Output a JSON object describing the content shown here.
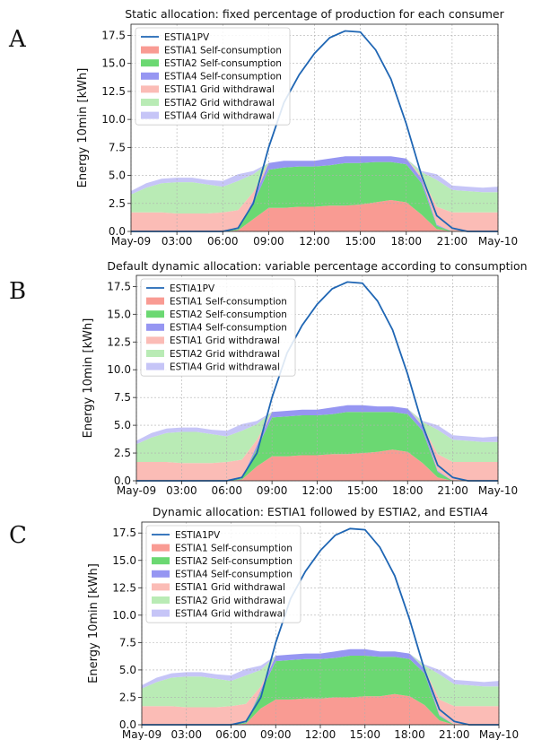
{
  "figure": {
    "panels": [
      {
        "letter": "A",
        "title": "Static allocation: fixed percentage of production for each consumer"
      },
      {
        "letter": "B",
        "title": "Default dynamic allocation: variable percentage according to consumption"
      },
      {
        "letter": "C",
        "title": "Dynamic allocation: ESTIA1 followed by ESTIA2, and ESTIA4"
      }
    ]
  },
  "colors": {
    "pv": "#1f66b4",
    "ESTIA1_self": "#f99b93",
    "ESTIA2_self": "#6bd872",
    "ESTIA4_self": "#9696f2",
    "ESTIA1_grid": "#fbbcb6",
    "ESTIA2_grid": "#b9ebb5",
    "ESTIA4_grid": "#c6c5f7"
  },
  "chart_data": [
    {
      "type": "area",
      "title": "Static allocation: fixed percentage of production for each consumer",
      "ylabel": "Energy 10min [kWh]",
      "xlabel": "",
      "x_ticks": [
        "May-09",
        "03:00",
        "06:00",
        "09:00",
        "12:00",
        "15:00",
        "18:00",
        "21:00",
        "May-10"
      ],
      "y_ticks": [
        "0.0",
        "2.5",
        "5.0",
        "7.5",
        "10.0",
        "12.5",
        "15.0",
        "17.5"
      ],
      "ylim": [
        0,
        18.5
      ],
      "x_hours": [
        0,
        1,
        2,
        3,
        4,
        5,
        6,
        7,
        8,
        9,
        10,
        11,
        12,
        13,
        14,
        15,
        16,
        17,
        18,
        19,
        20,
        21,
        22,
        23,
        24
      ],
      "legend": {
        "placement": "upper-left",
        "entries": [
          "ESTIA1PV",
          "ESTIA1 Self-consumption",
          "ESTIA2 Self-consumption",
          "ESTIA4 Self-consumption",
          "ESTIA1 Grid withdrawal",
          "ESTIA2 Grid withdrawal",
          "ESTIA4 Grid withdrawal"
        ]
      },
      "grid": true,
      "series": [
        {
          "name": "ESTIA1PV",
          "kind": "line",
          "values": [
            0,
            0,
            0,
            0,
            0,
            0,
            0,
            0.3,
            2.5,
            7.5,
            11.5,
            14.0,
            15.9,
            17.3,
            17.9,
            17.8,
            16.2,
            13.6,
            9.6,
            5.0,
            1.4,
            0.3,
            0,
            0,
            0
          ]
        },
        {
          "name": "ESTIA1 Self-consumption",
          "kind": "area",
          "values": [
            0,
            0,
            0,
            0,
            0,
            0,
            0,
            0.1,
            1.1,
            2.1,
            2.1,
            2.2,
            2.2,
            2.3,
            2.3,
            2.4,
            2.6,
            2.8,
            2.6,
            1.5,
            0.2,
            0,
            0,
            0,
            0
          ]
        },
        {
          "name": "ESTIA2 Self-consumption",
          "kind": "area",
          "values": [
            0,
            0,
            0,
            0,
            0,
            0,
            0,
            0.1,
            1.4,
            3.4,
            3.6,
            3.6,
            3.6,
            3.6,
            3.8,
            3.7,
            3.6,
            3.4,
            3.4,
            2.8,
            0.3,
            0,
            0,
            0,
            0
          ]
        },
        {
          "name": "ESTIA4 Self-consumption",
          "kind": "area",
          "values": [
            0,
            0,
            0,
            0,
            0,
            0,
            0,
            0,
            0.3,
            0.6,
            0.6,
            0.5,
            0.5,
            0.6,
            0.6,
            0.6,
            0.5,
            0.5,
            0.5,
            0.4,
            0.1,
            0,
            0,
            0,
            0
          ]
        },
        {
          "name": "ESTIA1 Grid withdrawal",
          "kind": "area",
          "values": [
            1.7,
            1.7,
            1.7,
            1.6,
            1.6,
            1.6,
            1.7,
            1.7,
            0.7,
            0,
            0,
            0,
            0,
            0,
            0,
            0,
            0,
            0,
            0,
            0.2,
            1.6,
            1.7,
            1.7,
            1.7,
            1.7
          ]
        },
        {
          "name": "ESTIA2 Grid withdrawal",
          "kind": "area",
          "values": [
            1.6,
            2.2,
            2.6,
            2.8,
            2.8,
            2.6,
            2.3,
            2.6,
            1.6,
            0,
            0,
            0,
            0,
            0,
            0,
            0,
            0,
            0,
            0,
            0.4,
            2.4,
            2.0,
            1.9,
            1.8,
            1.8
          ]
        },
        {
          "name": "ESTIA4 Grid withdrawal",
          "kind": "area",
          "values": [
            0.3,
            0.4,
            0.4,
            0.4,
            0.4,
            0.4,
            0.5,
            0.6,
            0.3,
            0,
            0,
            0,
            0,
            0,
            0,
            0,
            0,
            0,
            0,
            0.1,
            0.5,
            0.4,
            0.4,
            0.4,
            0.5
          ]
        }
      ]
    },
    {
      "type": "area",
      "title": "Default dynamic allocation: variable percentage according to consumption",
      "ylabel": "Energy 10min [kWh]",
      "xlabel": "",
      "x_ticks": [
        "May-09",
        "03:00",
        "06:00",
        "09:00",
        "12:00",
        "15:00",
        "18:00",
        "21:00",
        "May-10"
      ],
      "y_ticks": [
        "0.0",
        "2.5",
        "5.0",
        "7.5",
        "10.0",
        "12.5",
        "15.0",
        "17.5"
      ],
      "ylim": [
        0,
        18.5
      ],
      "x_hours": [
        0,
        1,
        2,
        3,
        4,
        5,
        6,
        7,
        8,
        9,
        10,
        11,
        12,
        13,
        14,
        15,
        16,
        17,
        18,
        19,
        20,
        21,
        22,
        23,
        24
      ],
      "legend": {
        "placement": "upper-left",
        "entries": [
          "ESTIA1PV",
          "ESTIA1 Self-consumption",
          "ESTIA2 Self-consumption",
          "ESTIA4 Self-consumption",
          "ESTIA1 Grid withdrawal",
          "ESTIA2 Grid withdrawal",
          "ESTIA4 Grid withdrawal"
        ]
      },
      "grid": true,
      "series": [
        {
          "name": "ESTIA1PV",
          "kind": "line",
          "values": [
            0,
            0,
            0,
            0,
            0,
            0,
            0,
            0.3,
            2.5,
            7.5,
            11.5,
            14.0,
            15.9,
            17.3,
            17.9,
            17.8,
            16.2,
            13.6,
            9.6,
            5.0,
            1.4,
            0.3,
            0,
            0,
            0
          ]
        },
        {
          "name": "ESTIA1 Self-consumption",
          "kind": "area",
          "values": [
            0,
            0,
            0,
            0,
            0,
            0,
            0,
            0.1,
            1.3,
            2.2,
            2.2,
            2.3,
            2.3,
            2.4,
            2.4,
            2.5,
            2.6,
            2.8,
            2.6,
            1.6,
            0.3,
            0,
            0,
            0,
            0
          ]
        },
        {
          "name": "ESTIA2 Self-consumption",
          "kind": "area",
          "values": [
            0,
            0,
            0,
            0,
            0,
            0,
            0,
            0.1,
            1.6,
            3.5,
            3.6,
            3.6,
            3.6,
            3.6,
            3.8,
            3.7,
            3.6,
            3.4,
            3.4,
            2.9,
            0.5,
            0,
            0,
            0,
            0
          ]
        },
        {
          "name": "ESTIA4 Self-consumption",
          "kind": "area",
          "values": [
            0,
            0,
            0,
            0,
            0,
            0,
            0,
            0,
            0.3,
            0.5,
            0.5,
            0.5,
            0.5,
            0.6,
            0.6,
            0.6,
            0.5,
            0.5,
            0.5,
            0.4,
            0.1,
            0,
            0,
            0,
            0
          ]
        },
        {
          "name": "ESTIA1 Grid withdrawal",
          "kind": "area",
          "values": [
            1.7,
            1.7,
            1.7,
            1.6,
            1.6,
            1.6,
            1.7,
            1.7,
            0.5,
            0,
            0,
            0,
            0,
            0,
            0,
            0,
            0,
            0,
            0,
            0.1,
            1.5,
            1.7,
            1.7,
            1.7,
            1.7
          ]
        },
        {
          "name": "ESTIA2 Grid withdrawal",
          "kind": "area",
          "values": [
            1.6,
            2.2,
            2.6,
            2.8,
            2.8,
            2.6,
            2.3,
            2.6,
            1.4,
            0,
            0,
            0,
            0,
            0,
            0,
            0,
            0,
            0,
            0,
            0.3,
            2.2,
            2.0,
            1.9,
            1.8,
            1.8
          ]
        },
        {
          "name": "ESTIA4 Grid withdrawal",
          "kind": "area",
          "values": [
            0.3,
            0.4,
            0.4,
            0.4,
            0.4,
            0.4,
            0.5,
            0.6,
            0.3,
            0,
            0,
            0,
            0,
            0,
            0,
            0,
            0,
            0,
            0,
            0.1,
            0.4,
            0.4,
            0.4,
            0.4,
            0.5
          ]
        }
      ]
    },
    {
      "type": "area",
      "title": "Dynamic allocation: ESTIA1 followed by ESTIA2, and ESTIA4",
      "ylabel": "Energy 10min [kWh]",
      "xlabel": "",
      "x_ticks": [
        "May-09",
        "03:00",
        "06:00",
        "09:00",
        "12:00",
        "15:00",
        "18:00",
        "21:00",
        "May-10"
      ],
      "y_ticks": [
        "0.0",
        "2.5",
        "5.0",
        "7.5",
        "10.0",
        "12.5",
        "15.0",
        "17.5"
      ],
      "ylim": [
        0,
        18.5
      ],
      "x_hours": [
        0,
        1,
        2,
        3,
        4,
        5,
        6,
        7,
        8,
        9,
        10,
        11,
        12,
        13,
        14,
        15,
        16,
        17,
        18,
        19,
        20,
        21,
        22,
        23,
        24
      ],
      "legend": {
        "placement": "upper-left",
        "entries": [
          "ESTIA1PV",
          "ESTIA1 Self-consumption",
          "ESTIA2 Self-consumption",
          "ESTIA4 Self-consumption",
          "ESTIA1 Grid withdrawal",
          "ESTIA2 Grid withdrawal",
          "ESTIA4 Grid withdrawal"
        ]
      },
      "grid": true,
      "series": [
        {
          "name": "ESTIA1PV",
          "kind": "line",
          "values": [
            0,
            0,
            0,
            0,
            0,
            0,
            0,
            0.3,
            2.5,
            7.5,
            11.5,
            14.0,
            15.9,
            17.3,
            17.9,
            17.8,
            16.2,
            13.6,
            9.6,
            5.0,
            1.4,
            0.3,
            0,
            0,
            0
          ]
        },
        {
          "name": "ESTIA1 Self-consumption",
          "kind": "area",
          "values": [
            0,
            0,
            0,
            0,
            0,
            0,
            0,
            0.1,
            1.5,
            2.3,
            2.3,
            2.4,
            2.4,
            2.5,
            2.5,
            2.6,
            2.6,
            2.8,
            2.6,
            1.8,
            0.4,
            0,
            0,
            0,
            0
          ]
        },
        {
          "name": "ESTIA2 Self-consumption",
          "kind": "area",
          "values": [
            0,
            0,
            0,
            0,
            0,
            0,
            0,
            0.1,
            1.5,
            3.5,
            3.6,
            3.6,
            3.6,
            3.6,
            3.8,
            3.7,
            3.6,
            3.4,
            3.4,
            2.9,
            0.4,
            0,
            0,
            0,
            0
          ]
        },
        {
          "name": "ESTIA4 Self-consumption",
          "kind": "area",
          "values": [
            0,
            0,
            0,
            0,
            0,
            0,
            0,
            0,
            0.2,
            0.5,
            0.5,
            0.5,
            0.5,
            0.6,
            0.6,
            0.6,
            0.5,
            0.5,
            0.5,
            0.4,
            0.1,
            0,
            0,
            0,
            0
          ]
        },
        {
          "name": "ESTIA1 Grid withdrawal",
          "kind": "area",
          "values": [
            1.7,
            1.7,
            1.7,
            1.6,
            1.6,
            1.6,
            1.7,
            1.7,
            0.3,
            0,
            0,
            0,
            0,
            0,
            0,
            0,
            0,
            0,
            0,
            0,
            1.4,
            1.7,
            1.7,
            1.7,
            1.7
          ]
        },
        {
          "name": "ESTIA2 Grid withdrawal",
          "kind": "area",
          "values": [
            1.6,
            2.2,
            2.6,
            2.8,
            2.8,
            2.6,
            2.3,
            2.6,
            1.5,
            0,
            0,
            0,
            0,
            0,
            0,
            0,
            0,
            0,
            0,
            0.3,
            2.3,
            2.0,
            1.9,
            1.8,
            1.8
          ]
        },
        {
          "name": "ESTIA4 Grid withdrawal",
          "kind": "area",
          "values": [
            0.3,
            0.4,
            0.4,
            0.4,
            0.4,
            0.4,
            0.5,
            0.6,
            0.4,
            0,
            0,
            0,
            0,
            0,
            0,
            0,
            0,
            0,
            0,
            0.1,
            0.4,
            0.4,
            0.4,
            0.4,
            0.5
          ]
        }
      ]
    }
  ]
}
